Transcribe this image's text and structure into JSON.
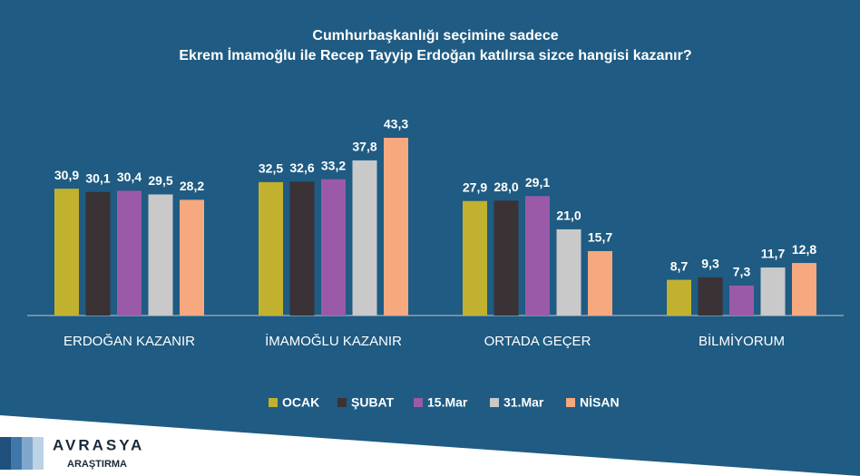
{
  "chart_data": {
    "type": "bar",
    "title": [
      "Cumhurbaşkanlığı seçimine sadece",
      "Ekrem İmamoğlu ile Recep Tayyip Erdoğan katılırsa sizce hangisi kazanır?"
    ],
    "categories": [
      "ERDOĞAN KAZANIR",
      "İMAMOĞLU KAZANIR",
      "ORTADA GEÇER",
      "BİLMİYORUM"
    ],
    "series": [
      {
        "name": "OCAK",
        "color": "#c2b12f",
        "values": [
          30.9,
          32.5,
          27.9,
          8.7
        ],
        "value_labels": [
          "30,9",
          "32,5",
          "27,9",
          "8,7"
        ]
      },
      {
        "name": "ŞUBAT",
        "color": "#3b3236",
        "values": [
          30.1,
          32.6,
          28.0,
          9.3
        ],
        "value_labels": [
          "30,1",
          "32,6",
          "28,0",
          "9,3"
        ]
      },
      {
        "name": "15.Mar",
        "color": "#9a5aa8",
        "values": [
          30.4,
          33.2,
          29.1,
          7.3
        ],
        "value_labels": [
          "30,4",
          "33,2",
          "29,1",
          "7,3"
        ]
      },
      {
        "name": "31.Mar",
        "color": "#c9c9c9",
        "values": [
          29.5,
          37.8,
          21.0,
          11.7
        ],
        "value_labels": [
          "29,5",
          "37,8",
          "21,0",
          "11,7"
        ]
      },
      {
        "name": "NİSAN",
        "color": "#f6a87f",
        "values": [
          28.2,
          43.3,
          15.7,
          12.8
        ],
        "value_labels": [
          "28,2",
          "43,3",
          "15,7",
          "12,8"
        ]
      }
    ]
  },
  "logo": {
    "name": "AVRASYA",
    "sub": "ARAŞTIRMA"
  }
}
